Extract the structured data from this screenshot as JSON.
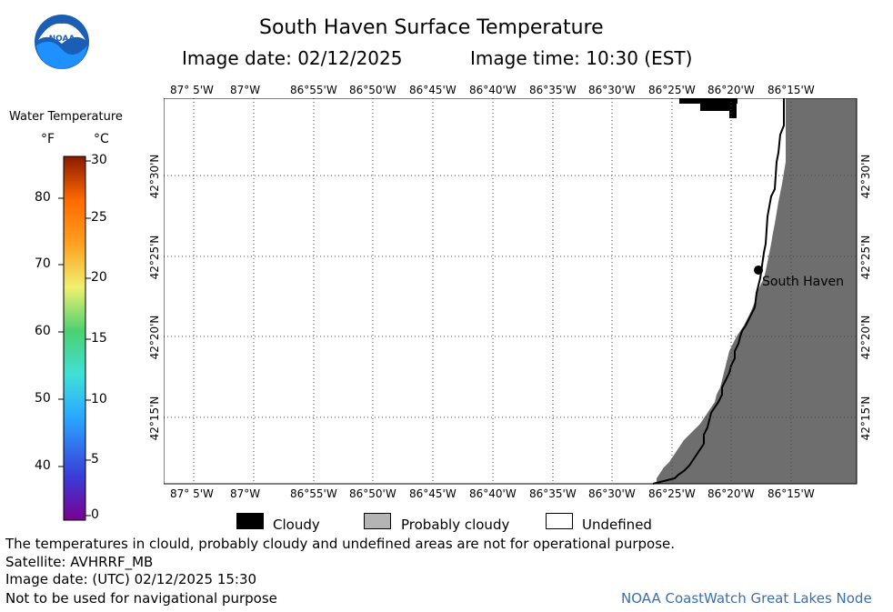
{
  "header": {
    "title": "South Haven Surface Temperature",
    "image_date": "Image date: 02/12/2025",
    "image_time": "Image time: 10:30 (EST)",
    "logo_text": "NOAA"
  },
  "colorbar": {
    "title": "Water Temperature",
    "unit_f": "°F",
    "unit_c": "°C",
    "f_ticks": [
      "80",
      "70",
      "60",
      "50",
      "40"
    ],
    "c_ticks": [
      "30",
      "25",
      "20",
      "15",
      "10",
      "5",
      "0"
    ]
  },
  "map": {
    "top_lon_labels": [
      "87° 5'W",
      "87°W",
      "86°55'W",
      "86°50'W",
      "86°45'W",
      "86°40'W",
      "86°35'W",
      "86°30'W",
      "86°25'W",
      "86°20'W",
      "86°15'W"
    ],
    "bottom_lon_labels": [
      "87° 5'W",
      "87°W",
      "86°55'W",
      "86°50'W",
      "86°45'W",
      "86°40'W",
      "86°35'W",
      "86°30'W",
      "86°25'W",
      "86°20'W",
      "86°15'W"
    ],
    "lat_labels": [
      "42°30'N",
      "42°25'N",
      "42°20'N",
      "42°15'N"
    ],
    "city_label": "South Haven",
    "land_color": "#6e6e6e",
    "cloud_color": "#000000"
  },
  "legend": {
    "cloudy": "Cloudy",
    "probably_cloudy": "Probably cloudy",
    "undefined": "Undefined"
  },
  "footer": {
    "disclaimer": "The temperatures in clould, probably cloudy and undefined areas are not for operational purpose.",
    "satellite": "Satellite: AVHRRF_MB",
    "utc_date": "Image date: (UTC) 02/12/2025  15:30",
    "nav_warning": "Not to be used for navigational purpose",
    "credit": "NOAA CoastWatch Great Lakes Node"
  }
}
